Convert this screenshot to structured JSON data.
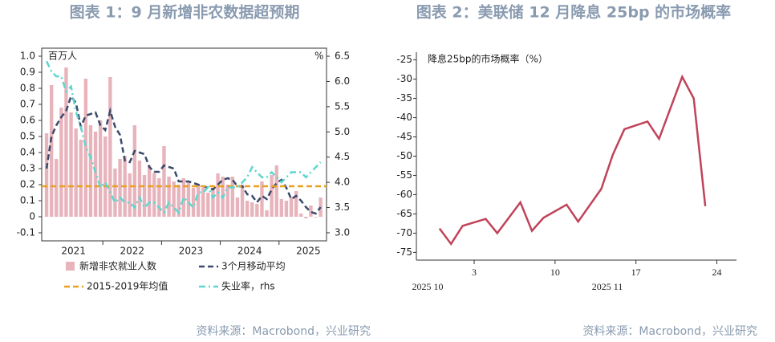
{
  "chart_data": [
    {
      "type": "bar_line",
      "title": "图表 1：9 月新增非农数据超预期",
      "y_label": "百万人",
      "y2_label": "%",
      "source": "资料来源：Macrobond，兴业研究",
      "year_labels": [
        "2021",
        "2022",
        "2023",
        "2024",
        "2025"
      ],
      "ylim": [
        -0.15,
        1.05
      ],
      "yticks": [
        {
          "value": 1,
          "label": "1.0"
        },
        0.9,
        0.8,
        0.7,
        0.6,
        0.5,
        0.4,
        0.3,
        0.2,
        0.1,
        0,
        -0.1
      ],
      "y2lim": [
        2.84,
        6.66
      ],
      "y2ticks": [
        6.5,
        {
          "value": 6,
          "label": "6.0"
        },
        5.5,
        {
          "value": 5,
          "label": "5.0"
        },
        4.5,
        {
          "value": 4,
          "label": "4.0"
        },
        3.5,
        {
          "value": 3,
          "label": "3.0"
        }
      ],
      "series": [
        {
          "name": "新增非农就业人数",
          "kind": "bar",
          "color": "#e8b4bc",
          "values": [
            0.52,
            0.82,
            0.36,
            0.68,
            0.93,
            0.65,
            0.55,
            0.48,
            0.86,
            0.57,
            0.53,
            0.6,
            0.5,
            0.87,
            0.3,
            0.36,
            0.38,
            0.27,
            0.57,
            0.35,
            0.26,
            0.32,
            0.27,
            0.24,
            0.44,
            0.25,
            0.22,
            0.2,
            0.24,
            0.22,
            0.18,
            0.2,
            0.18,
            0.15,
            0.18,
            0.27,
            0.25,
            0.2,
            0.25,
            0.12,
            0.2,
            0.1,
            0.09,
            0.08,
            0.22,
            0.04,
            0.26,
            0.32,
            0.11,
            0.1,
            0.12,
            0.16,
            0.02,
            -0.01,
            0.07,
            -0.004,
            0.12
          ]
        },
        {
          "name": "3个月移动平均",
          "kind": "dash",
          "color": "#3b4a6b",
          "values": [
            0.3,
            0.5,
            0.57,
            0.62,
            0.66,
            0.75,
            0.71,
            0.56,
            0.63,
            0.64,
            0.65,
            0.57,
            0.54,
            0.66,
            0.56,
            0.51,
            0.35,
            0.34,
            0.41,
            0.4,
            0.39,
            0.31,
            0.28,
            0.28,
            0.32,
            0.31,
            0.3,
            0.22,
            0.22,
            0.22,
            0.21,
            0.2,
            0.19,
            0.18,
            0.17,
            0.2,
            0.23,
            0.24,
            0.23,
            0.19,
            0.19,
            0.14,
            0.13,
            0.09,
            0.13,
            0.11,
            0.17,
            0.21,
            0.23,
            0.18,
            0.11,
            0.13,
            0.1,
            0.06,
            0.03,
            0.02,
            0.06
          ]
        },
        {
          "name": "2015-2019年均值",
          "kind": "hline",
          "color": "#e8a020",
          "value": 0.19
        },
        {
          "name": "失业率，rhs",
          "kind": "dashdot",
          "axis": "y2",
          "color": "#5ed6d0",
          "values": [
            6.4,
            6.2,
            6.1,
            6.1,
            5.8,
            5.9,
            5.4,
            5.1,
            4.7,
            4.5,
            4.2,
            3.9,
            4.0,
            3.8,
            3.6,
            3.7,
            3.6,
            3.6,
            3.5,
            3.7,
            3.5,
            3.6,
            3.6,
            3.5,
            3.4,
            3.6,
            3.5,
            3.4,
            3.7,
            3.6,
            3.5,
            3.8,
            3.8,
            3.9,
            3.7,
            3.8,
            3.7,
            3.9,
            3.9,
            3.9,
            4.0,
            4.1,
            4.3,
            4.2,
            4.1,
            4.1,
            4.2,
            4.1,
            4.0,
            4.1,
            4.2,
            4.2,
            4.2,
            4.1,
            4.2,
            4.3,
            4.4
          ]
        }
      ]
    },
    {
      "type": "line",
      "title": "图表 2：美联储 12 月降息 25bp 的市场概率",
      "y_label": "降息25bp的市场概率（%）",
      "source": "资料来源：Macrobond，兴业研究",
      "x_annotations": [
        "2025 10",
        "2025 11"
      ],
      "xlim": [
        -2,
        25.7
      ],
      "xticks": [
        3,
        10,
        17,
        24
      ],
      "ylim": [
        -77,
        -23
      ],
      "yticks": [
        -25,
        -30,
        -35,
        -40,
        -45,
        -50,
        -55,
        -60,
        -65,
        -70,
        -75
      ],
      "x": [
        0,
        1,
        2,
        4,
        5,
        7,
        8,
        9,
        11,
        12,
        14,
        15,
        16,
        18,
        19,
        21,
        22,
        23
      ],
      "series": [
        {
          "color": "#c0435a",
          "values": [
            -68.8,
            -72.8,
            -68.1,
            -66.3,
            -70,
            -62,
            -69.4,
            -66,
            -62.6,
            -67,
            -58.5,
            -49.6,
            -43,
            -41,
            -45.5,
            -29.4,
            -35,
            -63
          ]
        }
      ]
    }
  ]
}
